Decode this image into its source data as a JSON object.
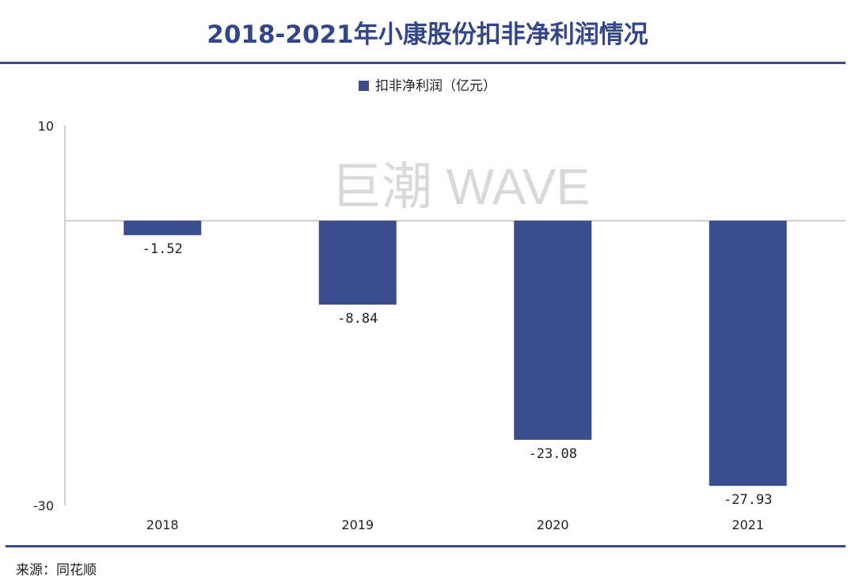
{
  "title": "2018-2021年小康股份扣非净利润情况",
  "source": "来源：同花顺",
  "watermark": "巨潮 WAVE",
  "colors": {
    "bar": "#3b4d8d",
    "title": "#34468a"
  },
  "chart_data": {
    "type": "bar",
    "title": "2018-2021年小康股份扣非净利润情况",
    "categories": [
      "2018",
      "2019",
      "2020",
      "2021"
    ],
    "series": [
      {
        "name": "扣非净利润（亿元）",
        "values": [
          -1.52,
          -8.84,
          -23.08,
          -27.93
        ]
      }
    ],
    "data_labels": [
      "-1.52",
      "-8.84",
      "-23.08",
      "-27.93"
    ],
    "ylim": [
      -30,
      10
    ],
    "yticks": [
      "10",
      "-30"
    ],
    "legend_position": "top-center",
    "grid": false
  }
}
